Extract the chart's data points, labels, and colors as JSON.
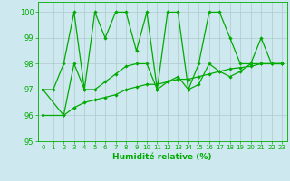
{
  "xlabel": "Humidité relative (%)",
  "xlim": [
    -0.5,
    23.5
  ],
  "ylim": [
    95,
    100.4
  ],
  "yticks": [
    95,
    96,
    97,
    98,
    99,
    100
  ],
  "xticks": [
    0,
    1,
    2,
    3,
    4,
    5,
    6,
    7,
    8,
    9,
    10,
    11,
    12,
    13,
    14,
    15,
    16,
    17,
    18,
    19,
    20,
    21,
    22,
    23
  ],
  "background_color": "#cde9ef",
  "grid_color": "#b0c8cc",
  "line_color": "#00aa00",
  "line1_x": [
    0,
    1,
    2,
    3,
    4,
    5,
    6,
    7,
    8,
    9,
    10,
    11,
    12,
    13,
    14,
    15,
    16,
    17,
    18,
    19,
    20,
    21,
    22,
    23
  ],
  "line1_y": [
    97,
    97,
    98,
    100,
    97,
    100,
    99,
    100,
    100,
    98.5,
    100,
    97,
    100,
    100,
    97,
    98,
    100,
    100,
    99,
    98,
    98,
    99,
    98,
    98
  ],
  "line2_x": [
    0,
    2,
    3,
    4,
    5,
    6,
    7,
    8,
    9,
    10,
    11,
    12,
    13,
    14,
    15,
    16,
    17,
    18,
    19,
    20,
    21,
    22,
    23
  ],
  "line2_y": [
    97,
    96,
    98,
    97,
    97,
    97.3,
    97.6,
    97.9,
    98.0,
    98.0,
    97,
    97.3,
    97.5,
    97.0,
    97.2,
    98.0,
    97.7,
    97.5,
    97.7,
    98.0,
    98.0,
    98.0,
    98.0
  ],
  "line3_x": [
    0,
    2,
    3,
    4,
    5,
    6,
    7,
    8,
    9,
    10,
    11,
    12,
    13,
    14,
    15,
    16,
    17,
    18,
    19,
    20,
    21,
    22,
    23
  ],
  "line3_y": [
    96.0,
    96.0,
    96.3,
    96.5,
    96.6,
    96.7,
    96.8,
    97.0,
    97.1,
    97.2,
    97.2,
    97.3,
    97.4,
    97.4,
    97.5,
    97.6,
    97.7,
    97.8,
    97.85,
    97.9,
    98.0,
    98.0,
    98.0
  ]
}
